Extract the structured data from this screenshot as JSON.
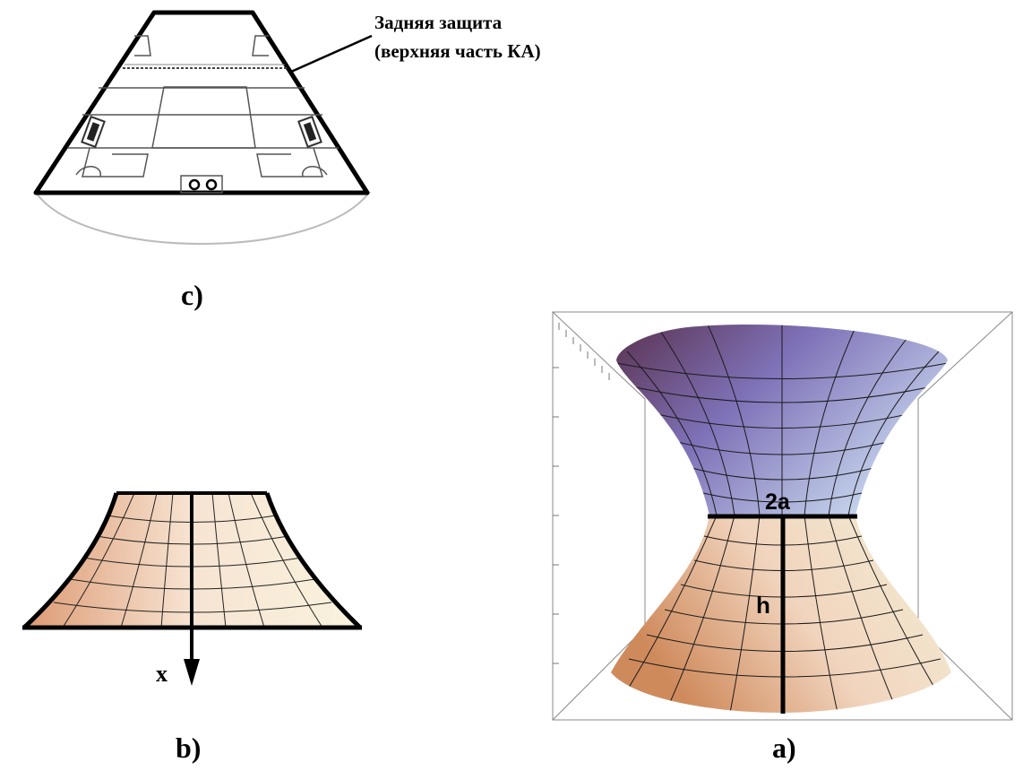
{
  "panel_c": {
    "caption": "c)",
    "annotation_line1": "Задняя защита",
    "annotation_line2": "(верхняя часть КА)"
  },
  "panel_b": {
    "caption": "b)",
    "axis_label": "x"
  },
  "panel_a": {
    "caption": "a)",
    "width_label": "2a",
    "height_label": "h"
  }
}
